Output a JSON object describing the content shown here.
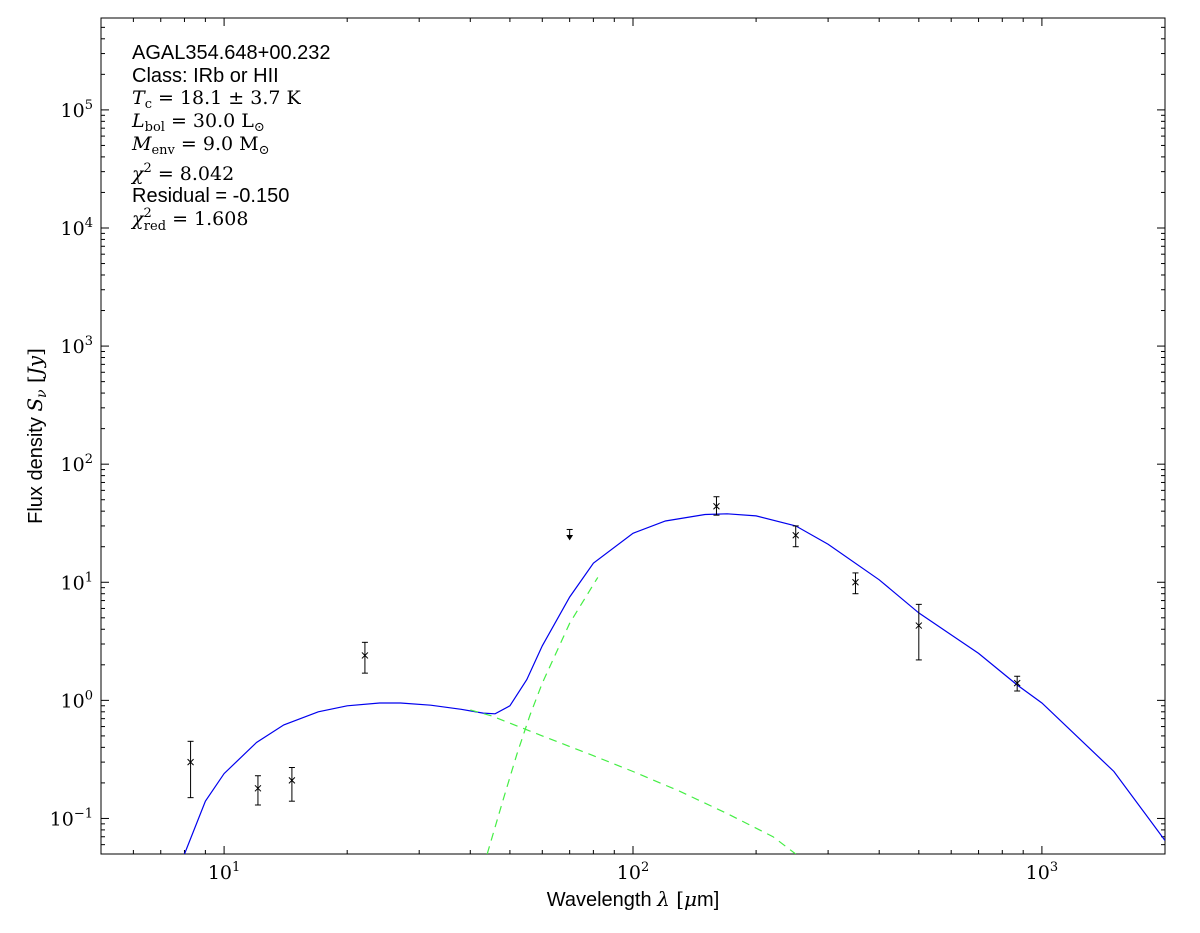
{
  "chart_data": {
    "type": "scatter",
    "xscale": "log",
    "yscale": "log",
    "xlim": [
      5,
      2000
    ],
    "ylim": [
      0.05,
      600000
    ],
    "xlabel": {
      "prefix": "Wavelength ",
      "symbol": "λ",
      "unit_open": " [",
      "unit_mu": "μ",
      "unit_rest": "m]"
    },
    "ylabel": {
      "prefix": "Flux density ",
      "symbol": "S",
      "sub": "ν",
      "unit_open": " [",
      "unit_sym": "Jy",
      "unit_close": "]"
    },
    "x_ticks": [
      {
        "value": 10,
        "base": "10",
        "exp": "1"
      },
      {
        "value": 100,
        "base": "10",
        "exp": "2"
      },
      {
        "value": 1000,
        "base": "10",
        "exp": "3"
      }
    ],
    "y_ticks": [
      {
        "value": 0.1,
        "base": "10",
        "exp": "−1"
      },
      {
        "value": 1,
        "base": "10",
        "exp": "0"
      },
      {
        "value": 10,
        "base": "10",
        "exp": "1"
      },
      {
        "value": 100,
        "base": "10",
        "exp": "2"
      },
      {
        "value": 1000,
        "base": "10",
        "exp": "3"
      },
      {
        "value": 10000,
        "base": "10",
        "exp": "4"
      },
      {
        "value": 100000,
        "base": "10",
        "exp": "5"
      }
    ],
    "annotations": {
      "source": "AGAL354.648+00.232",
      "class_line": "Class: IRb or HII",
      "tc": {
        "sym": "T",
        "sub": "c",
        "val": " = 18.1 ± 3.7 K"
      },
      "lbol": {
        "sym": "L",
        "sub": "bol",
        "val": " = 30.0 L",
        "unit_sub": "⊙"
      },
      "menv": {
        "sym": "M",
        "sub": "env",
        "val": " = 9.0 M",
        "unit_sub": "⊙"
      },
      "chi2": {
        "sym": "χ",
        "sup": "2",
        "val": " = 8.042"
      },
      "residual": "Residual = -0.150",
      "chi2red": {
        "sym": "χ",
        "sup": "2",
        "sub": "red",
        "val": " = 1.608"
      }
    },
    "points": [
      {
        "x": 8.28,
        "y": 0.3,
        "lo": 0.15,
        "hi": 0.45
      },
      {
        "x": 12.1,
        "y": 0.18,
        "lo": 0.13,
        "hi": 0.23
      },
      {
        "x": 14.65,
        "y": 0.21,
        "lo": 0.14,
        "hi": 0.27
      },
      {
        "x": 22.1,
        "y": 2.4,
        "lo": 1.7,
        "hi": 3.1
      },
      {
        "x": 160,
        "y": 44,
        "lo": 37,
        "hi": 53
      },
      {
        "x": 250,
        "y": 25,
        "lo": 20,
        "hi": 30
      },
      {
        "x": 350,
        "y": 10,
        "lo": 8,
        "hi": 12
      },
      {
        "x": 500,
        "y": 4.3,
        "lo": 2.2,
        "hi": 6.5
      },
      {
        "x": 870,
        "y": 1.4,
        "lo": 1.2,
        "hi": 1.6
      }
    ],
    "upper_limits": [
      {
        "x": 70,
        "y": 28
      }
    ],
    "series": [
      {
        "style": "solid",
        "color": "#0000ee",
        "x": [
          8.0,
          9.0,
          10.0,
          12.0,
          14.0,
          17.0,
          20.0,
          24.0,
          27.0,
          32.0,
          38.0,
          43.0,
          46.0,
          50.0,
          55.0,
          60.0,
          70.0,
          80.0,
          100.0,
          120.0,
          150.0,
          170.0,
          200.0,
          250.0,
          300.0,
          400.0,
          500.0,
          700.0,
          870.0,
          1000.0,
          1500.0,
          2000.0
        ],
        "y": [
          0.05,
          0.14,
          0.24,
          0.44,
          0.62,
          0.8,
          0.9,
          0.95,
          0.95,
          0.91,
          0.84,
          0.78,
          0.77,
          0.9,
          1.5,
          2.9,
          7.5,
          14.5,
          26.0,
          33.0,
          37.5,
          38.0,
          36.5,
          30.0,
          21.0,
          10.5,
          5.5,
          2.5,
          1.35,
          0.95,
          0.25,
          0.065
        ]
      },
      {
        "style": "dashed",
        "color": "#44ee44",
        "x": [
          40.0,
          45.0,
          60.0,
          80.0,
          100.0,
          130.0,
          170.0,
          220.0,
          250.0
        ],
        "y": [
          0.83,
          0.74,
          0.5,
          0.34,
          0.25,
          0.17,
          0.11,
          0.07,
          0.05
        ]
      },
      {
        "style": "dashed",
        "color": "#44ee44",
        "x": [
          44.0,
          48.0,
          52.0,
          56.0,
          60.0,
          70.0,
          82.0
        ],
        "y": [
          0.05,
          0.14,
          0.35,
          0.75,
          1.4,
          4.5,
          11.0
        ]
      }
    ]
  }
}
